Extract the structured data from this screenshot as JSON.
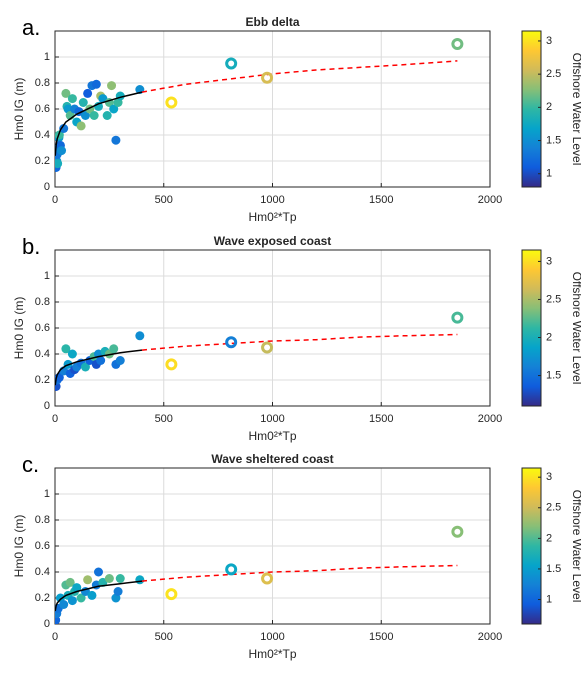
{
  "chart_data": [
    {
      "type": "scatter",
      "panel_label": "a.",
      "title": "Ebb delta",
      "xlabel": "Hm0²*Tp",
      "ylabel": "Hm0 IG (m)",
      "xlim": [
        0,
        2000
      ],
      "xticks": [
        0,
        500,
        1000,
        1500,
        2000
      ],
      "ylim": [
        0,
        1.2
      ],
      "yticks": [
        0,
        0.2,
        0.4,
        0.6,
        0.8,
        1
      ],
      "grid": true,
      "colorbar": {
        "label": "Offshore Water Level",
        "lim": [
          0.8,
          3.15
        ],
        "ticks": [
          1,
          1.5,
          2,
          2.5,
          3
        ]
      },
      "points": {
        "x": [
          5,
          8,
          10,
          12,
          15,
          18,
          20,
          25,
          30,
          40,
          50,
          55,
          60,
          70,
          80,
          90,
          100,
          110,
          120,
          130,
          140,
          150,
          160,
          170,
          180,
          190,
          200,
          210,
          220,
          240,
          250,
          260,
          270,
          280,
          290,
          300,
          390
        ],
        "y": [
          0.15,
          0.2,
          0.25,
          0.18,
          0.3,
          0.38,
          0.4,
          0.32,
          0.28,
          0.45,
          0.72,
          0.62,
          0.6,
          0.55,
          0.68,
          0.6,
          0.5,
          0.58,
          0.47,
          0.65,
          0.55,
          0.72,
          0.6,
          0.78,
          0.55,
          0.79,
          0.62,
          0.7,
          0.68,
          0.55,
          0.65,
          0.78,
          0.6,
          0.36,
          0.65,
          0.7,
          0.75
        ],
        "c": [
          1.2,
          1.5,
          1.3,
          1.8,
          1.4,
          1.6,
          2.0,
          1.2,
          1.5,
          1.3,
          2.2,
          1.9,
          1.6,
          2.1,
          2.0,
          1.4,
          1.7,
          1.2,
          2.3,
          1.9,
          1.5,
          1.1,
          2.2,
          1.3,
          2.0,
          1.2,
          1.8,
          2.4,
          1.6,
          1.9,
          2.1,
          2.3,
          1.7,
          1.3,
          2.0,
          1.8,
          1.5
        ]
      },
      "events": {
        "x": [
          535,
          810,
          975,
          1850
        ],
        "y": [
          0.65,
          0.95,
          0.84,
          1.1
        ],
        "c": [
          3.0,
          1.8,
          2.6,
          2.2
        ]
      },
      "fit": {
        "x": [
          1,
          5,
          10,
          25,
          50,
          100,
          200,
          300,
          400
        ],
        "y": [
          0.24,
          0.32,
          0.37,
          0.44,
          0.5,
          0.56,
          0.64,
          0.69,
          0.73
        ],
        "color": "#000000"
      },
      "extrapolation": {
        "x": [
          400,
          600,
          800,
          1000,
          1200,
          1400,
          1600,
          1850
        ],
        "y": [
          0.73,
          0.79,
          0.83,
          0.87,
          0.9,
          0.92,
          0.94,
          0.97
        ],
        "color": "#ff0000"
      }
    },
    {
      "type": "scatter",
      "panel_label": "b.",
      "title": "Wave exposed coast",
      "xlabel": "Hm0²*Tp",
      "ylabel": "Hm0 IG (m)",
      "xlim": [
        0,
        2000
      ],
      "xticks": [
        0,
        500,
        1000,
        1500,
        2000
      ],
      "ylim": [
        0,
        1.2
      ],
      "yticks": [
        0,
        0.2,
        0.4,
        0.6,
        0.8,
        1
      ],
      "grid": true,
      "colorbar": {
        "label": "Offshore Water Level",
        "lim": [
          1.1,
          3.15
        ],
        "ticks": [
          1.5,
          2,
          2.5,
          3
        ]
      },
      "points": {
        "x": [
          5,
          10,
          20,
          40,
          50,
          60,
          70,
          80,
          90,
          100,
          120,
          140,
          160,
          180,
          190,
          200,
          210,
          230,
          250,
          270,
          280,
          300,
          390
        ],
        "y": [
          0.15,
          0.2,
          0.22,
          0.27,
          0.44,
          0.32,
          0.25,
          0.4,
          0.28,
          0.3,
          0.33,
          0.3,
          0.35,
          0.38,
          0.32,
          0.4,
          0.35,
          0.42,
          0.4,
          0.44,
          0.32,
          0.35,
          0.54
        ],
        "c": [
          1.3,
          1.5,
          1.4,
          1.6,
          2.1,
          1.8,
          1.4,
          1.9,
          1.3,
          1.6,
          1.5,
          2.0,
          1.4,
          2.2,
          1.3,
          1.7,
          1.5,
          2.0,
          2.3,
          2.2,
          1.5,
          1.6,
          1.7
        ]
      },
      "events": {
        "x": [
          535,
          810,
          975,
          1850
        ],
        "y": [
          0.32,
          0.49,
          0.45,
          0.68
        ],
        "c": [
          3.0,
          1.6,
          2.6,
          2.2
        ]
      },
      "fit": {
        "x": [
          1,
          5,
          10,
          25,
          50,
          100,
          200,
          300,
          400
        ],
        "y": [
          0.16,
          0.21,
          0.24,
          0.28,
          0.31,
          0.34,
          0.38,
          0.41,
          0.43
        ],
        "color": "#000000"
      },
      "extrapolation": {
        "x": [
          400,
          600,
          800,
          1000,
          1200,
          1400,
          1600,
          1850
        ],
        "y": [
          0.43,
          0.46,
          0.48,
          0.5,
          0.51,
          0.53,
          0.54,
          0.55
        ],
        "color": "#ff0000"
      }
    },
    {
      "type": "scatter",
      "panel_label": "c.",
      "title": "Wave sheltered coast",
      "xlabel": "Hm0²*Tp",
      "ylabel": "Hm0 IG (m)",
      "xlim": [
        0,
        2000
      ],
      "xticks": [
        0,
        500,
        1000,
        1500,
        2000
      ],
      "ylim": [
        0,
        1.2
      ],
      "yticks": [
        0,
        0.2,
        0.4,
        0.6,
        0.8,
        1
      ],
      "grid": true,
      "colorbar": {
        "label": "Offshore Water Level",
        "lim": [
          0.6,
          3.15
        ],
        "ticks": [
          1,
          1.5,
          2,
          2.5,
          3
        ]
      },
      "points": {
        "x": [
          3,
          8,
          15,
          25,
          40,
          50,
          60,
          70,
          80,
          90,
          100,
          120,
          140,
          150,
          170,
          190,
          200,
          220,
          250,
          280,
          290,
          300,
          390
        ],
        "y": [
          0.03,
          0.08,
          0.12,
          0.2,
          0.15,
          0.3,
          0.22,
          0.32,
          0.18,
          0.25,
          0.28,
          0.2,
          0.25,
          0.34,
          0.22,
          0.3,
          0.4,
          0.32,
          0.35,
          0.2,
          0.25,
          0.35,
          0.34
        ],
        "c": [
          1.0,
          1.2,
          1.1,
          1.5,
          1.3,
          2.0,
          1.7,
          2.1,
          1.4,
          1.8,
          1.6,
          1.9,
          1.3,
          2.3,
          1.5,
          1.2,
          1.1,
          1.8,
          2.1,
          1.4,
          1.2,
          1.9,
          1.6
        ]
      },
      "events": {
        "x": [
          535,
          810,
          975,
          1850
        ],
        "y": [
          0.23,
          0.42,
          0.35,
          0.71
        ],
        "c": [
          3.0,
          1.6,
          2.6,
          2.2
        ]
      },
      "fit": {
        "x": [
          1,
          5,
          10,
          25,
          50,
          100,
          200,
          300,
          400
        ],
        "y": [
          0.1,
          0.14,
          0.16,
          0.19,
          0.22,
          0.25,
          0.29,
          0.31,
          0.33
        ],
        "color": "#000000"
      },
      "extrapolation": {
        "x": [
          400,
          600,
          800,
          1000,
          1200,
          1400,
          1600,
          1850
        ],
        "y": [
          0.33,
          0.36,
          0.38,
          0.4,
          0.41,
          0.43,
          0.44,
          0.45
        ],
        "color": "#ff0000"
      }
    }
  ]
}
